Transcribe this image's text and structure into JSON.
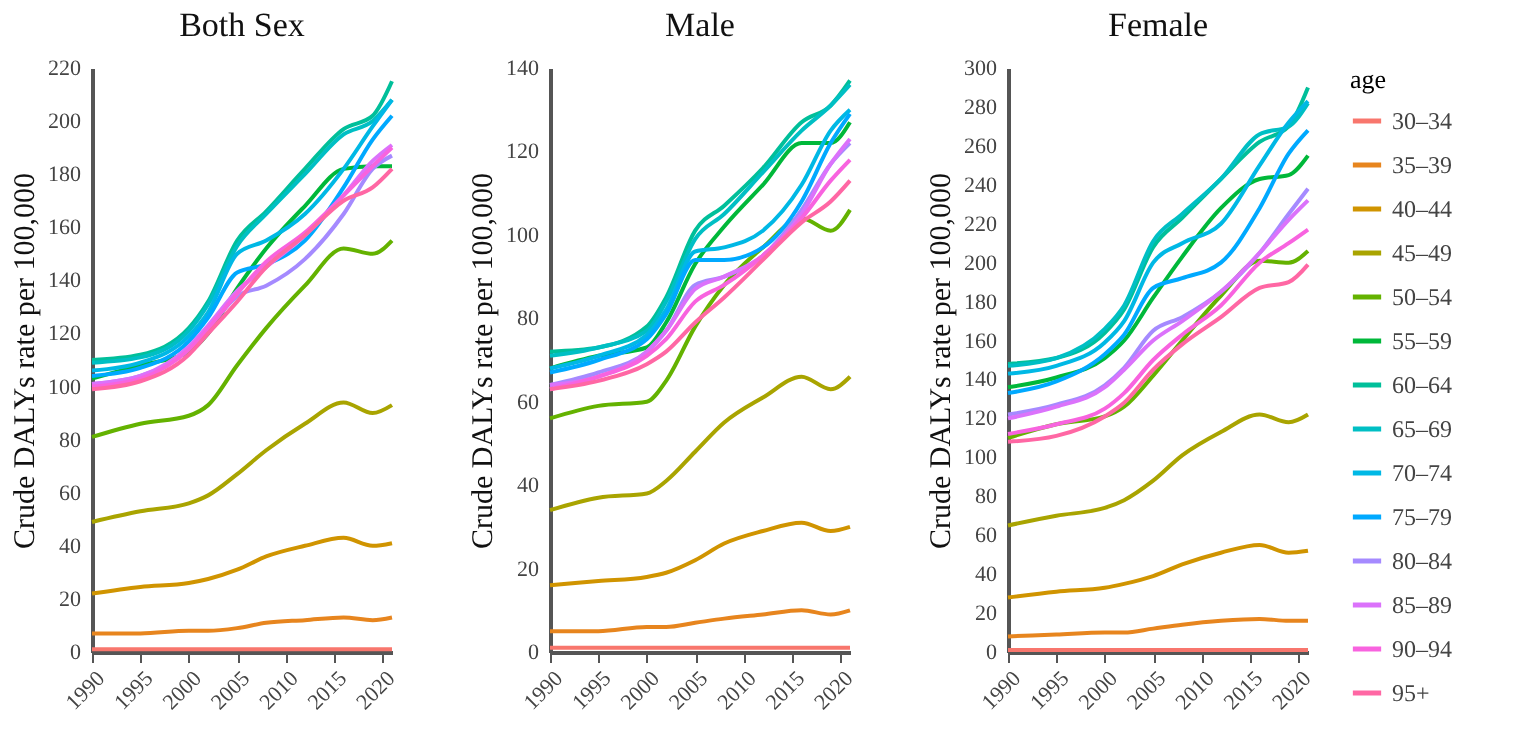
{
  "chart_data": [
    {
      "type": "line",
      "title": "Both Sex",
      "ylabel": "Crude DALYs rate per 100,000",
      "x": [
        1990,
        1995,
        2000,
        2002,
        2005,
        2008,
        2012,
        2016,
        2019,
        2021
      ],
      "xlim": [
        1990,
        2021
      ],
      "xticks": [
        1990,
        1995,
        2000,
        2005,
        2010,
        2015,
        2020
      ],
      "ylim": [
        0,
        220
      ],
      "yticks": [
        0,
        20,
        40,
        60,
        80,
        100,
        120,
        140,
        160,
        180,
        200,
        220
      ],
      "grid": false,
      "legend": "right",
      "series": [
        {
          "name": "30–34",
          "color": "#f8766d",
          "values": [
            1,
            1,
            1,
            1,
            1,
            1,
            1,
            1,
            1,
            1
          ]
        },
        {
          "name": "35–39",
          "color": "#e7851e",
          "values": [
            7,
            7,
            8,
            8,
            9,
            11,
            12,
            13,
            12,
            13
          ]
        },
        {
          "name": "40–44",
          "color": "#d09400",
          "values": [
            22,
            24.5,
            26,
            27.5,
            31,
            36,
            40,
            43,
            40,
            41
          ]
        },
        {
          "name": "45–49",
          "color": "#a9a400",
          "values": [
            49,
            53,
            56,
            59,
            67,
            76,
            86,
            94,
            90,
            93
          ]
        },
        {
          "name": "50–54",
          "color": "#64b200",
          "values": [
            81,
            86,
            89,
            93,
            108,
            122,
            138,
            152,
            150,
            155
          ]
        },
        {
          "name": "55–59",
          "color": "#00b83a",
          "values": [
            103,
            108,
            113,
            120,
            137,
            152,
            168,
            182,
            183,
            183
          ]
        },
        {
          "name": "60–64",
          "color": "#00bf9a",
          "values": [
            110,
            112,
            122,
            132,
            155,
            166,
            182,
            197,
            202,
            215
          ]
        },
        {
          "name": "65–69",
          "color": "#00bfc4",
          "values": [
            109,
            111,
            121,
            131,
            153,
            165,
            180,
            195,
            200,
            208
          ]
        },
        {
          "name": "70–74",
          "color": "#00b8e5",
          "values": [
            106,
            109,
            119,
            128,
            150,
            155,
            165,
            182,
            198,
            208
          ]
        },
        {
          "name": "75–79",
          "color": "#00a9ff",
          "values": [
            104,
            107,
            117,
            126,
            143,
            146,
            155,
            175,
            193,
            202
          ]
        },
        {
          "name": "80–84",
          "color": "#a58aff",
          "values": [
            101,
            104,
            114,
            122,
            134,
            138,
            148,
            165,
            182,
            187
          ]
        },
        {
          "name": "85–89",
          "color": "#db72fb",
          "values": [
            101,
            104,
            115,
            123,
            136,
            145,
            157,
            172,
            185,
            191
          ]
        },
        {
          "name": "90–94",
          "color": "#f863df",
          "values": [
            100,
            103,
            114,
            122,
            135,
            147,
            158,
            172,
            183,
            190
          ]
        },
        {
          "name": "95+",
          "color": "#ff67a4",
          "values": [
            99,
            102,
            112,
            120,
            132,
            145,
            157,
            170,
            175,
            182
          ]
        }
      ]
    },
    {
      "type": "line",
      "title": "Male",
      "ylabel": "Crude DALYs rate per 100,000",
      "x": [
        1990,
        1995,
        2000,
        2002,
        2005,
        2008,
        2012,
        2016,
        2019,
        2021
      ],
      "xlim": [
        1990,
        2021
      ],
      "xticks": [
        1990,
        1995,
        2000,
        2005,
        2010,
        2015,
        2020
      ],
      "ylim": [
        0,
        140
      ],
      "yticks": [
        0,
        20,
        40,
        60,
        80,
        100,
        120,
        140
      ],
      "grid": false,
      "legend": "right",
      "series": [
        {
          "name": "30–34",
          "color": "#f8766d",
          "values": [
            1,
            1,
            1,
            1,
            1,
            1,
            1,
            1,
            1,
            1
          ]
        },
        {
          "name": "35–39",
          "color": "#e7851e",
          "values": [
            5,
            5,
            6,
            6,
            7,
            8,
            9,
            10,
            9,
            10
          ]
        },
        {
          "name": "40–44",
          "color": "#d09400",
          "values": [
            16,
            17,
            18,
            19,
            22,
            26,
            29,
            31,
            29,
            30
          ]
        },
        {
          "name": "45–49",
          "color": "#a9a400",
          "values": [
            34,
            37,
            38,
            41,
            48,
            55,
            61,
            66,
            63,
            66
          ]
        },
        {
          "name": "50–54",
          "color": "#64b200",
          "values": [
            56,
            59,
            60,
            65,
            78,
            88,
            97,
            104,
            101,
            106
          ]
        },
        {
          "name": "55–59",
          "color": "#00b83a",
          "values": [
            68,
            71,
            73,
            79,
            93,
            102,
            112,
            122,
            122,
            127
          ]
        },
        {
          "name": "60–64",
          "color": "#00bf9a",
          "values": [
            72,
            73,
            78,
            85,
            101,
            107,
            116,
            127,
            131,
            137
          ]
        },
        {
          "name": "65–69",
          "color": "#00bfc4",
          "values": [
            71,
            73,
            77,
            84,
            99,
            105,
            115,
            125,
            131,
            136
          ]
        },
        {
          "name": "70–74",
          "color": "#00b8e5",
          "values": [
            68,
            71,
            76,
            82,
            96,
            97,
            101,
            112,
            125,
            130
          ]
        },
        {
          "name": "75–79",
          "color": "#00a9ff",
          "values": [
            67,
            70,
            75,
            81,
            94,
            94,
            97,
            108,
            122,
            129
          ]
        },
        {
          "name": "80–84",
          "color": "#a58aff",
          "values": [
            64,
            67,
            72,
            77,
            88,
            90,
            95,
            106,
            117,
            122
          ]
        },
        {
          "name": "85–89",
          "color": "#db72fb",
          "values": [
            64,
            66,
            72,
            77,
            87,
            90,
            95,
            105,
            117,
            123
          ]
        },
        {
          "name": "90–94",
          "color": "#f863df",
          "values": [
            63,
            66,
            71,
            75,
            84,
            88,
            95,
            104,
            113,
            118
          ]
        },
        {
          "name": "95+",
          "color": "#ff67a4",
          "values": [
            63,
            65,
            69,
            72,
            79,
            85,
            94,
            103,
            108,
            113
          ]
        }
      ]
    },
    {
      "type": "line",
      "title": "Female",
      "ylabel": "Crude DALYs rate per 100,000",
      "legend_title": "age",
      "x": [
        1990,
        1995,
        2000,
        2002,
        2005,
        2008,
        2012,
        2016,
        2019,
        2021
      ],
      "xlim": [
        1990,
        2021
      ],
      "xticks": [
        1990,
        1995,
        2000,
        2005,
        2010,
        2015,
        2020
      ],
      "ylim": [
        0,
        300
      ],
      "yticks": [
        0,
        20,
        40,
        60,
        80,
        100,
        120,
        140,
        160,
        180,
        200,
        220,
        240,
        260,
        280,
        300
      ],
      "grid": false,
      "legend": "right",
      "series": [
        {
          "name": "30–34",
          "color": "#f8766d",
          "values": [
            1,
            1,
            1,
            1,
            1,
            1,
            1,
            1,
            1,
            1
          ]
        },
        {
          "name": "35–39",
          "color": "#e7851e",
          "values": [
            8,
            9,
            10,
            10,
            12,
            14,
            16,
            17,
            16,
            16
          ]
        },
        {
          "name": "40–44",
          "color": "#d09400",
          "values": [
            28,
            31,
            33,
            35,
            39,
            45,
            51,
            55,
            51,
            52
          ]
        },
        {
          "name": "45–49",
          "color": "#a9a400",
          "values": [
            65,
            70,
            74,
            78,
            88,
            101,
            113,
            122,
            118,
            122
          ]
        },
        {
          "name": "50–54",
          "color": "#64b200",
          "values": [
            110,
            117,
            121,
            126,
            142,
            160,
            183,
            201,
            200,
            206
          ]
        },
        {
          "name": "55–59",
          "color": "#00b83a",
          "values": [
            136,
            141,
            151,
            160,
            182,
            203,
            228,
            243,
            245,
            255
          ]
        },
        {
          "name": "60–64",
          "color": "#00bf9a",
          "values": [
            148,
            151,
            164,
            176,
            208,
            223,
            243,
            262,
            270,
            290
          ]
        },
        {
          "name": "65–69",
          "color": "#00bfc4",
          "values": [
            147,
            151,
            166,
            178,
            211,
            225,
            243,
            266,
            270,
            282
          ]
        },
        {
          "name": "70–74",
          "color": "#00b8e5",
          "values": [
            143,
            147,
            159,
            170,
            200,
            210,
            220,
            250,
            272,
            283
          ]
        },
        {
          "name": "75–79",
          "color": "#00a9ff",
          "values": [
            133,
            139,
            153,
            163,
            187,
            192,
            200,
            228,
            256,
            268
          ]
        },
        {
          "name": "80–84",
          "color": "#a58aff",
          "values": [
            122,
            127,
            137,
            146,
            165,
            172,
            185,
            205,
            225,
            238
          ]
        },
        {
          "name": "85–89",
          "color": "#db72fb",
          "values": [
            120,
            126,
            136,
            145,
            160,
            170,
            185,
            205,
            222,
            232
          ]
        },
        {
          "name": "90–94",
          "color": "#f863df",
          "values": [
            112,
            117,
            125,
            133,
            150,
            163,
            178,
            200,
            210,
            217
          ]
        },
        {
          "name": "95+",
          "color": "#ff67a4",
          "values": [
            108,
            111,
            121,
            128,
            145,
            158,
            172,
            187,
            190,
            199
          ]
        }
      ]
    }
  ]
}
